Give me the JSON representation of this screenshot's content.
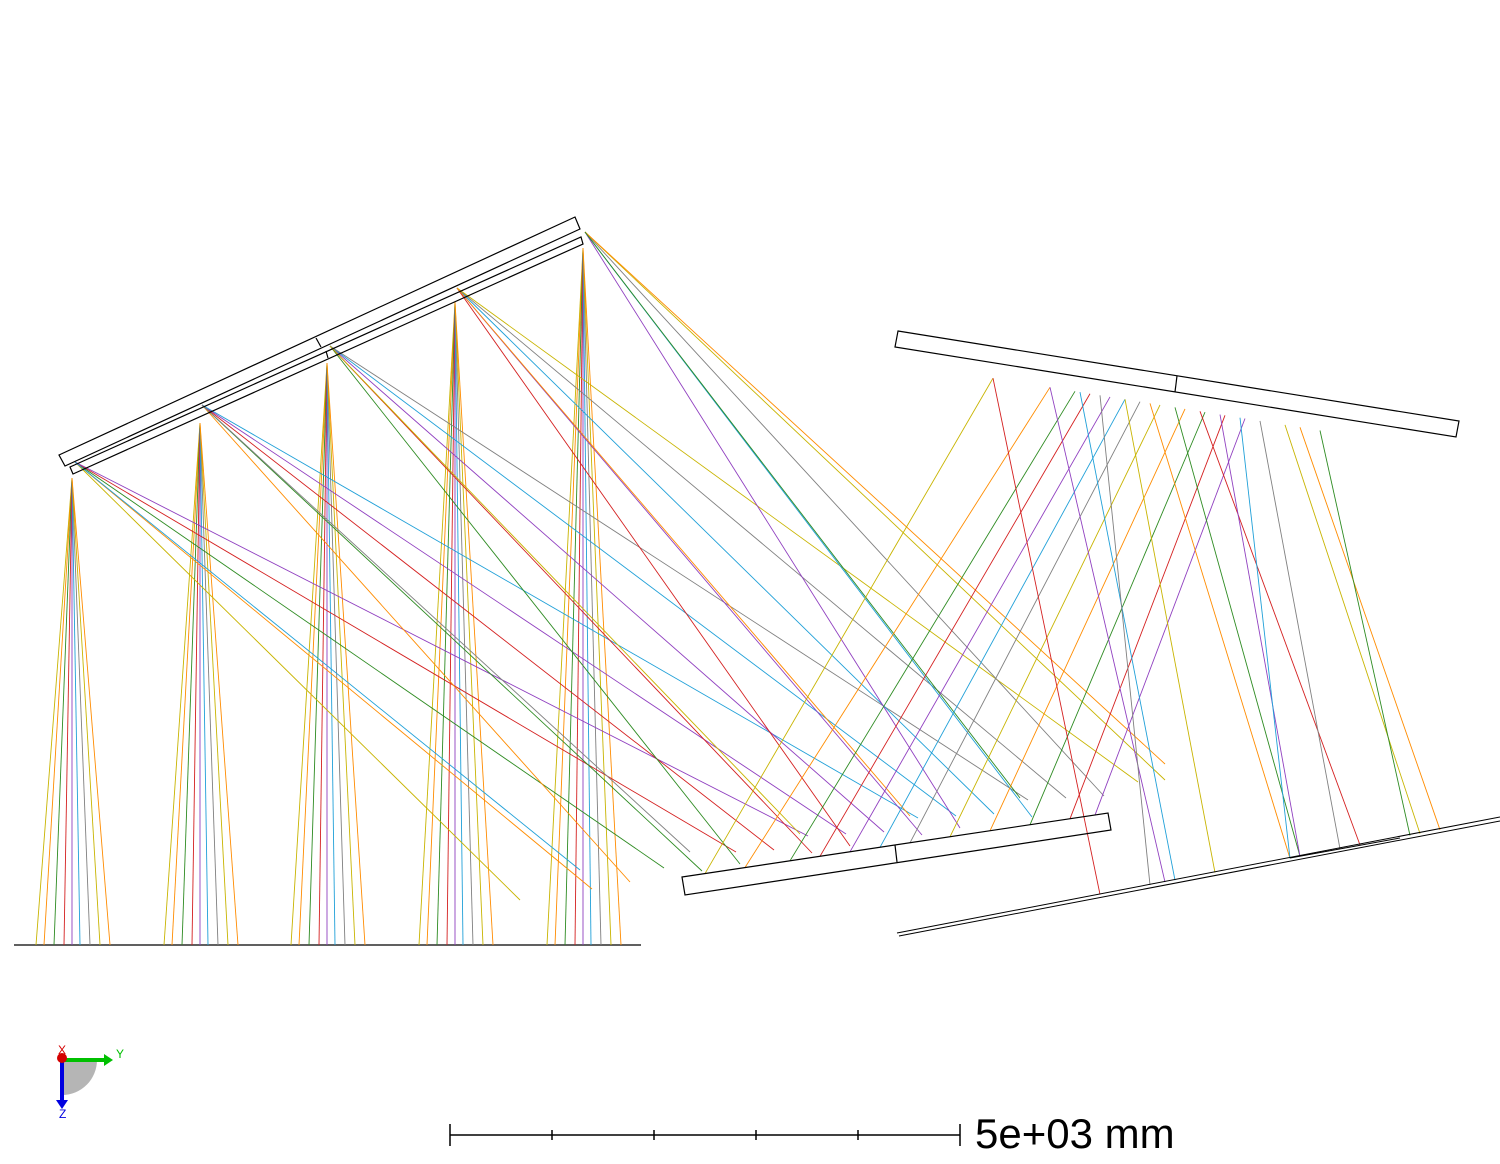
{
  "scale_bar": {
    "label": "5e+03 mm",
    "ticks": 5
  },
  "axes_triad": {
    "x_label": "X",
    "y_label": "Y",
    "z_label": "Z",
    "colors": {
      "x": "#d40000",
      "y": "#00c000",
      "z": "#0000e0"
    }
  },
  "ray_colors": [
    "#c8b400",
    "#ff8c00",
    "#2e8b22",
    "#d42020",
    "#9040c0",
    "#20a0d8",
    "#808080"
  ],
  "component_outline_color": "#000000"
}
